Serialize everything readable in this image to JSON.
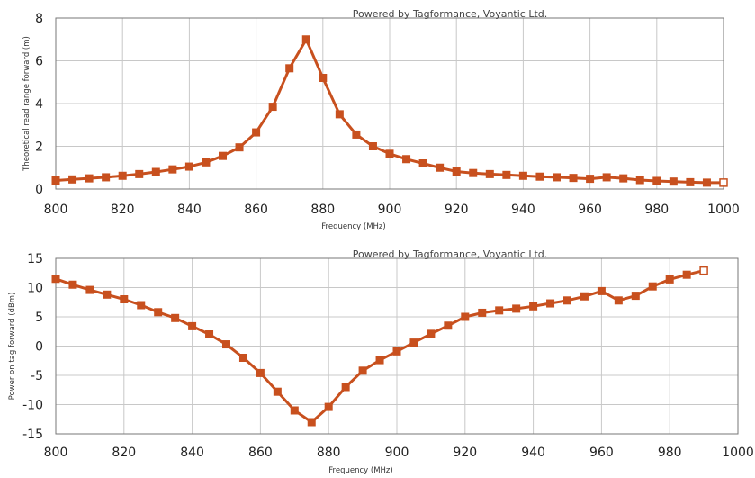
{
  "chart_data": [
    {
      "type": "line",
      "title": "",
      "watermark": "Powered by Tagformance, Voyantic Ltd.",
      "xlabel": "Frequency (MHz)",
      "ylabel": "Theoretical read range forward (m)",
      "xlim": [
        800,
        1000
      ],
      "ylim": [
        0,
        8
      ],
      "xticks": [
        800,
        820,
        840,
        860,
        880,
        900,
        920,
        940,
        960,
        980,
        1000
      ],
      "yticks": [
        0,
        2,
        4,
        6,
        8
      ],
      "grid": true,
      "colors": {
        "line": "#c8501e",
        "marker": "#c8501e",
        "grid": "#c8c8c8"
      },
      "series": [
        {
          "x": [
            800,
            805,
            810,
            815,
            820,
            825,
            830,
            835,
            840,
            845,
            850,
            855,
            860,
            865,
            870,
            875,
            880,
            885,
            890,
            895,
            900,
            905,
            910,
            915,
            920,
            925,
            930,
            935,
            940,
            945,
            950,
            955,
            960,
            965,
            970,
            975,
            980,
            985,
            990,
            995,
            1000
          ],
          "y": [
            0.4,
            0.45,
            0.5,
            0.55,
            0.62,
            0.7,
            0.8,
            0.92,
            1.05,
            1.25,
            1.55,
            1.95,
            2.65,
            3.85,
            5.65,
            7.0,
            5.2,
            3.5,
            2.55,
            2.0,
            1.65,
            1.4,
            1.2,
            1.0,
            0.82,
            0.75,
            0.7,
            0.66,
            0.62,
            0.58,
            0.55,
            0.52,
            0.48,
            0.55,
            0.5,
            0.42,
            0.38,
            0.35,
            0.32,
            0.3,
            0.3
          ]
        }
      ]
    },
    {
      "type": "line",
      "title": "",
      "watermark": "Powered by Tagformance, Voyantic Ltd.",
      "xlabel": "Frequency (MHz)",
      "ylabel": "Power on tag forward (dBm)",
      "xlim": [
        800,
        1000
      ],
      "ylim": [
        -15,
        15
      ],
      "xticks": [
        800,
        820,
        840,
        860,
        880,
        900,
        920,
        940,
        960,
        980,
        1000
      ],
      "yticks": [
        15,
        10,
        5,
        0,
        -5,
        -10,
        -15
      ],
      "grid": true,
      "colors": {
        "line": "#c8501e",
        "marker": "#c8501e",
        "grid": "#c8c8c8"
      },
      "series": [
        {
          "x": [
            800,
            805,
            810,
            815,
            820,
            825,
            830,
            835,
            840,
            845,
            850,
            855,
            860,
            865,
            870,
            875,
            880,
            885,
            890,
            895,
            900,
            905,
            910,
            915,
            920,
            925,
            930,
            935,
            940,
            945,
            950,
            955,
            960,
            965,
            970,
            975,
            980,
            985,
            990
          ],
          "y": [
            11.5,
            10.5,
            9.6,
            8.8,
            8.0,
            7.0,
            5.8,
            4.8,
            3.4,
            2.0,
            0.3,
            -2.0,
            -4.6,
            -7.8,
            -11.0,
            -13.0,
            -10.4,
            -7.0,
            -4.2,
            -2.4,
            -0.9,
            0.6,
            2.1,
            3.5,
            5.0,
            5.7,
            6.1,
            6.4,
            6.8,
            7.3,
            7.8,
            8.5,
            9.4,
            7.8,
            8.6,
            10.2,
            11.4,
            12.2,
            12.9
          ]
        }
      ]
    }
  ]
}
